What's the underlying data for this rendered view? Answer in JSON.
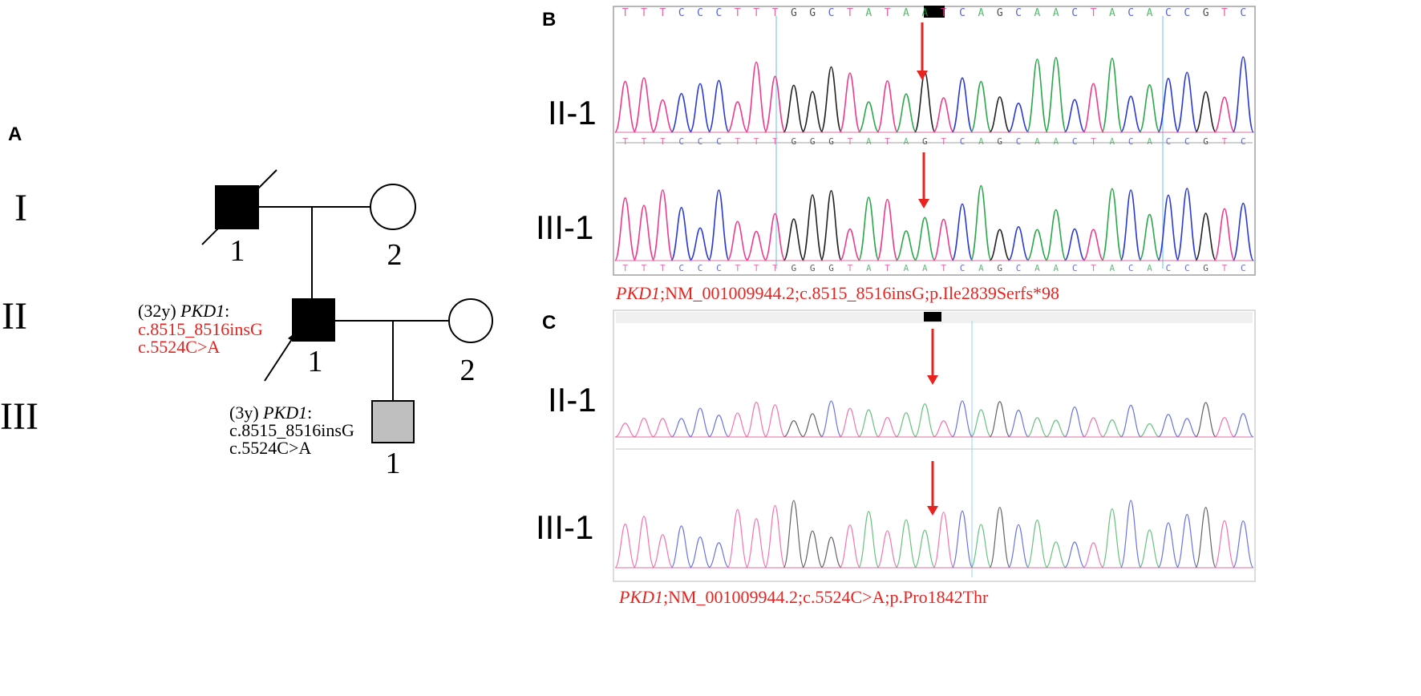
{
  "panels": {
    "a": {
      "letter": "A",
      "generations": [
        "I",
        "II",
        "III"
      ],
      "individuals": {
        "i1": "1",
        "i2": "2",
        "ii1": "1",
        "ii2": "2",
        "iii1": "1"
      },
      "proband_ii1_label": {
        "age": "(32y)",
        "gene": "PKD1",
        "colon": ":",
        "variant1": "c.8515_8516insG",
        "variant2": "c.5524C>A"
      },
      "child_iii1_label": {
        "age": "(3y)",
        "gene": "PKD1",
        "colon": ":",
        "variant1": "c.8515_8516insG",
        "variant2": "c.5524C>A"
      }
    },
    "b": {
      "letter": "B",
      "sample_labels": [
        "II-1",
        "III-1"
      ],
      "reference_sequence": "TTTCCCTTTGGCTATAATCAGCAACTACACCGTC",
      "highlighted_bases": "AT",
      "sample1_sequence": "TTTCCCTTTGGGTATAGTCAGCAACTACACCGTC",
      "sample2_sequence": "TTTCCCTTTGGGTATAATCAGCAACTACACCGTC",
      "caption": {
        "gene": "PKD1",
        "text": ";NM_001009944.2;c.8515_8516insG;p.Ile2839Serfs*98"
      }
    },
    "c": {
      "letter": "C",
      "sample_labels": [
        "II-1",
        "III-1"
      ],
      "caption": {
        "gene": "PKD1",
        "text": ";NM_001009944.2;c.5524C>A;p.Pro1842Thr"
      }
    }
  },
  "colors": {
    "variant_red": "#e8231f",
    "arrow_red": "#e8231f",
    "affected": "#000000",
    "carrier_gray": "#bfbfbf",
    "base_A": "#2aa84a",
    "base_C": "#2b3ad6",
    "base_G": "#222222",
    "base_T": "#ee3b8f"
  }
}
